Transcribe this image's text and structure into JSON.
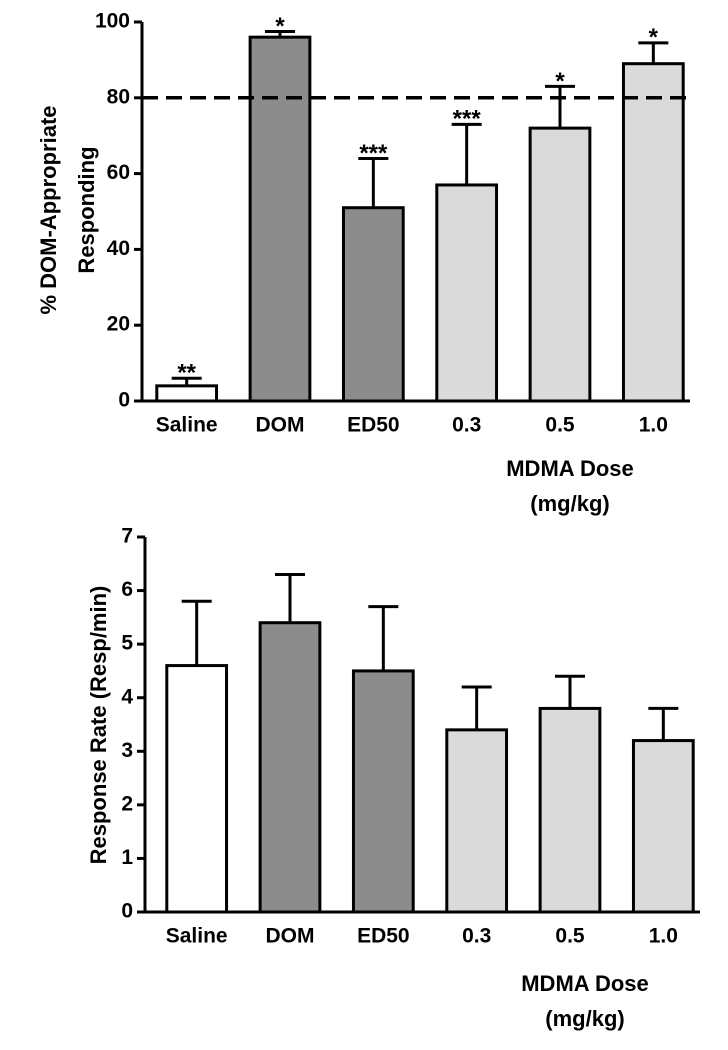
{
  "chart_data": [
    {
      "type": "bar",
      "ylabel": [
        "% DOM-Appropriate",
        "Responding"
      ],
      "xlabel": [
        "MDMA Dose",
        "(mg/kg)"
      ],
      "categories": [
        "Saline",
        "DOM",
        "ED50",
        "0.3",
        "0.5",
        "1.0"
      ],
      "values": [
        4,
        96,
        51,
        57,
        72,
        89
      ],
      "errors": [
        2,
        1.5,
        13,
        16,
        11,
        5.5
      ],
      "annotations": [
        "**",
        "*",
        "***",
        "***",
        "*",
        "*"
      ],
      "colors": [
        "#ffffff",
        "#8c8c8c",
        "#8c8c8c",
        "#dadada",
        "#dadada",
        "#dadada"
      ],
      "hline": 80,
      "ylim": [
        0,
        100
      ],
      "yticks": [
        0,
        20,
        40,
        60,
        80,
        100
      ]
    },
    {
      "type": "bar",
      "ylabel": [
        "Response Rate (Resp/min)"
      ],
      "xlabel": [
        "MDMA Dose",
        "(mg/kg)"
      ],
      "categories": [
        "Saline",
        "DOM",
        "ED50",
        "0.3",
        "0.5",
        "1.0"
      ],
      "values": [
        4.6,
        5.4,
        4.5,
        3.4,
        3.8,
        3.2
      ],
      "errors": [
        1.2,
        0.9,
        1.2,
        0.8,
        0.6,
        0.6
      ],
      "colors": [
        "#ffffff",
        "#8c8c8c",
        "#8c8c8c",
        "#dadada",
        "#dadada",
        "#dadada"
      ],
      "ylim": [
        0,
        7
      ],
      "yticks": [
        0,
        1,
        2,
        3,
        4,
        5,
        6,
        7
      ]
    }
  ]
}
